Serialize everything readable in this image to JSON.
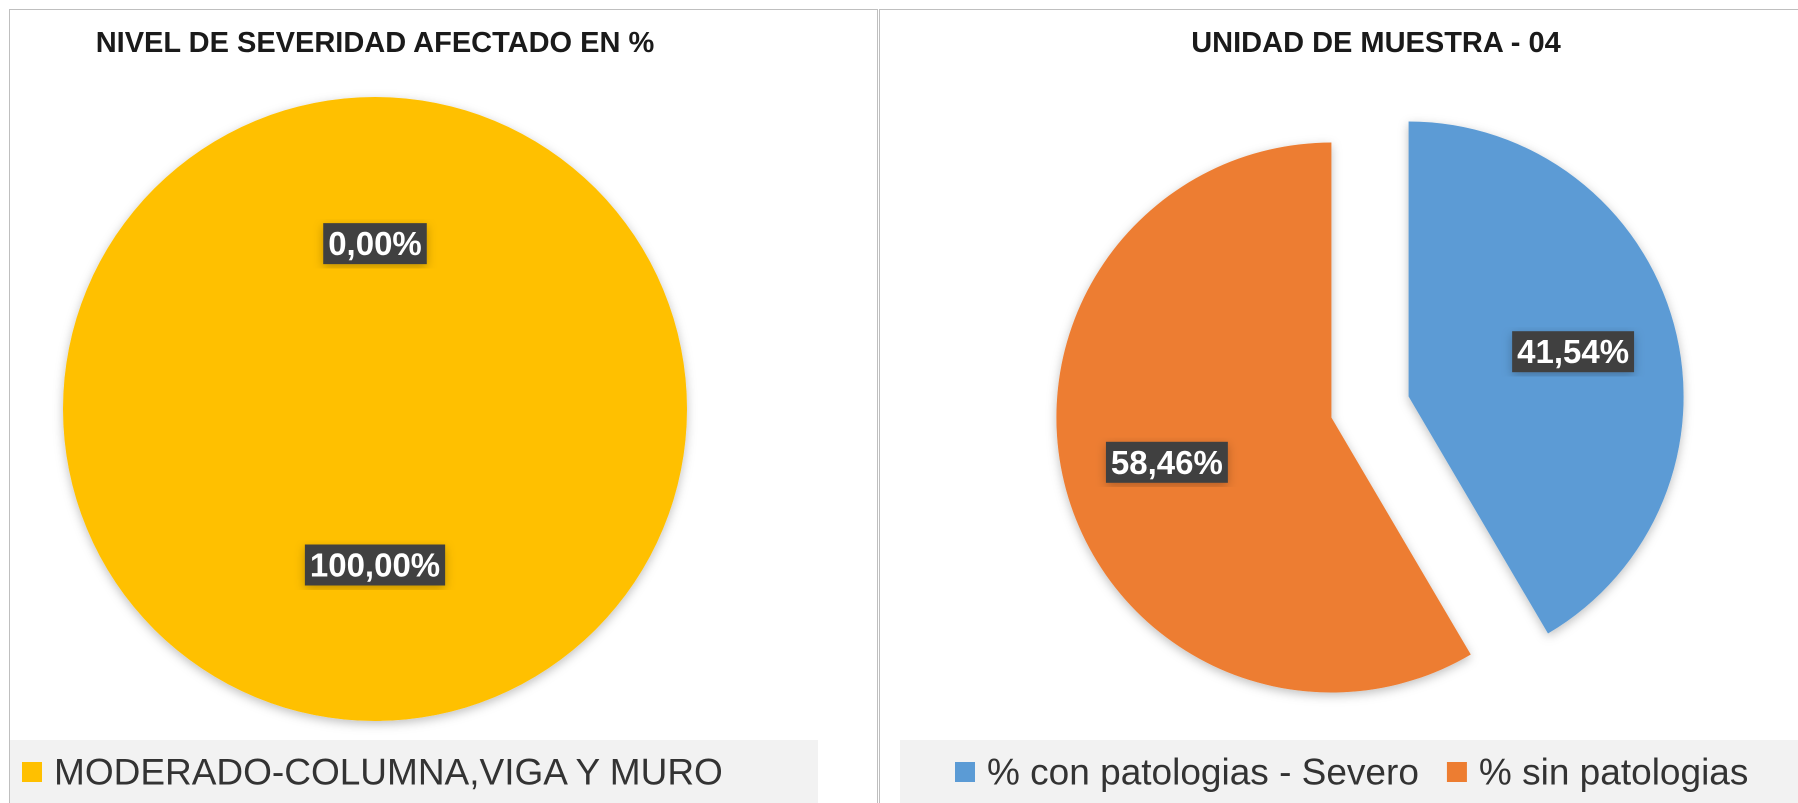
{
  "chart_data": [
    {
      "type": "pie",
      "title": "NIVEL DE SEVERIDAD AFECTADO EN %",
      "categories": [
        null,
        "MODERADO-COLUMNA,VIGA Y MURO"
      ],
      "values": [
        0,
        100
      ],
      "value_labels": [
        "0,00%",
        "100,00%"
      ],
      "colors": [
        "#5b9bd5",
        "#ffc000"
      ]
    },
    {
      "type": "pie",
      "title": "UNIDAD DE MUESTRA - 04",
      "categories": [
        "% con patologias - Severo",
        "% sin patologias"
      ],
      "values": [
        41.54,
        58.46
      ],
      "value_labels": [
        "41,54%",
        "58,46%"
      ],
      "colors": [
        "#5b9bd5",
        "#ed7d31"
      ],
      "exploded": true
    }
  ]
}
